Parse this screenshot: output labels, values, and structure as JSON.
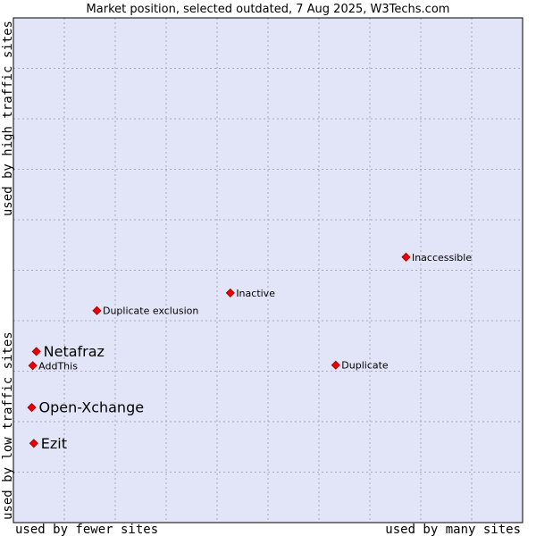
{
  "chart_data": {
    "type": "scatter",
    "title": "Market position, selected outdated, 7 Aug 2025, W3Techs.com",
    "xlabel_left": "used by fewer sites",
    "xlabel_right": "used by many sites",
    "ylabel_top": "used by high traffic sites",
    "ylabel_bottom": "used by low traffic sites",
    "xlim": [
      0,
      100
    ],
    "ylim": [
      0,
      100
    ],
    "grid": true,
    "points": [
      {
        "label": "Inaccessible",
        "x": 77.1,
        "y": 52.6,
        "emphasis": false
      },
      {
        "label": "Inactive",
        "x": 42.6,
        "y": 45.5,
        "emphasis": false
      },
      {
        "label": "Duplicate exclusion",
        "x": 16.4,
        "y": 42.0,
        "emphasis": false
      },
      {
        "label": "Duplicate",
        "x": 63.3,
        "y": 31.2,
        "emphasis": false
      },
      {
        "label": "Netafraz",
        "x": 4.5,
        "y": 33.9,
        "emphasis": true
      },
      {
        "label": "AddThis",
        "x": 3.8,
        "y": 31.1,
        "emphasis": false
      },
      {
        "label": "Open-Xchange",
        "x": 3.6,
        "y": 22.8,
        "emphasis": true
      },
      {
        "label": "Ezit",
        "x": 4.0,
        "y": 15.7,
        "emphasis": true
      }
    ]
  },
  "colors": {
    "plot_background": "#e2e5f8",
    "grid": "#a8a8c0",
    "border": "#000000",
    "marker": "#ee0000",
    "marker_stroke": "#990000"
  }
}
